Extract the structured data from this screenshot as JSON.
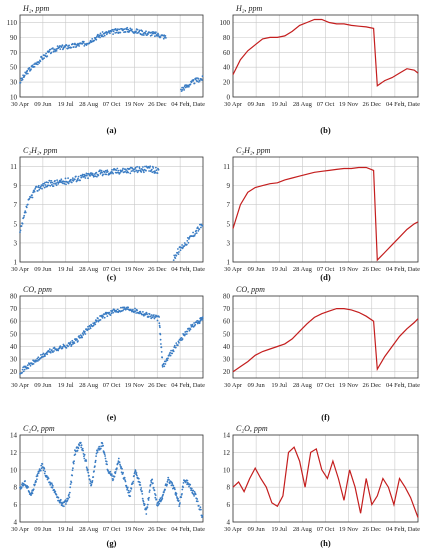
{
  "colors": {
    "scatter": "#3a7cc3",
    "line": "#c41e1e"
  },
  "x_axis": {
    "tick_labels": [
      "30 Apr",
      "09 Jun",
      "19 Jul",
      "28 Aug",
      "07 Oct",
      "19 Nov",
      "26 Dec",
      "04 Feb"
    ],
    "end_label": "t, Date"
  },
  "chart_data": [
    {
      "id": "a",
      "caption": "(a)",
      "type": "scatter",
      "ylabel": "H₂, ppm",
      "yticks": [
        10,
        30,
        50,
        70,
        90,
        110
      ],
      "ylim": [
        10,
        120
      ],
      "x": [
        0,
        4,
        8,
        12,
        16,
        20,
        24,
        28,
        32,
        36,
        40,
        44,
        48,
        52,
        56,
        60,
        64,
        68,
        72,
        76,
        80,
        84,
        88,
        92,
        96,
        100
      ],
      "y": [
        30,
        44,
        53,
        62,
        70,
        75,
        77,
        78,
        80,
        82,
        88,
        93,
        96,
        98,
        100,
        100,
        98,
        96,
        95,
        93,
        90,
        null,
        20,
        26,
        32,
        35
      ]
    },
    {
      "id": "b",
      "caption": "(b)",
      "type": "line",
      "ylabel": "H₂, ppm",
      "yticks": [
        0,
        20,
        40,
        60,
        80,
        100
      ],
      "ylim": [
        0,
        110
      ],
      "x": [
        0,
        4,
        8,
        12,
        16,
        20,
        24,
        28,
        32,
        36,
        40,
        44,
        48,
        52,
        56,
        60,
        64,
        68,
        72,
        76,
        78,
        82,
        86,
        90,
        94,
        98,
        100
      ],
      "y": [
        30,
        50,
        62,
        70,
        78,
        80,
        80,
        82,
        88,
        96,
        100,
        104,
        104,
        100,
        98,
        98,
        96,
        95,
        94,
        92,
        15,
        22,
        26,
        32,
        38,
        36,
        32
      ]
    },
    {
      "id": "c",
      "caption": "(c)",
      "type": "scatter",
      "ylabel": "C₂H₂, ppm",
      "yticks": [
        1,
        3,
        5,
        7,
        9,
        11
      ],
      "ylim": [
        1,
        12
      ],
      "x": [
        0,
        4,
        8,
        12,
        16,
        20,
        24,
        28,
        32,
        36,
        40,
        44,
        48,
        52,
        56,
        60,
        64,
        68,
        72,
        76,
        80,
        84,
        88,
        92,
        96,
        100
      ],
      "y": [
        4,
        7,
        8.5,
        9,
        9.2,
        9.3,
        9.4,
        9.6,
        9.8,
        10,
        10.2,
        10.3,
        10.4,
        10.5,
        10.6,
        10.6,
        10.7,
        10.7,
        10.7,
        10.5,
        null,
        1.5,
        2.5,
        3.3,
        4.2,
        5
      ]
    },
    {
      "id": "d",
      "caption": "(d)",
      "type": "line",
      "ylabel": "C₂H₂, ppm",
      "yticks": [
        1,
        3,
        5,
        7,
        9,
        11
      ],
      "ylim": [
        1,
        12
      ],
      "x": [
        0,
        4,
        8,
        12,
        16,
        20,
        24,
        28,
        32,
        36,
        40,
        44,
        48,
        52,
        56,
        60,
        64,
        68,
        72,
        76,
        78,
        82,
        86,
        90,
        94,
        98,
        100
      ],
      "y": [
        4.5,
        7,
        8.3,
        8.8,
        9,
        9.2,
        9.3,
        9.6,
        9.8,
        10,
        10.2,
        10.4,
        10.5,
        10.6,
        10.7,
        10.8,
        10.8,
        10.9,
        10.9,
        10.6,
        1.2,
        2,
        2.8,
        3.6,
        4.4,
        5,
        5.2
      ]
    },
    {
      "id": "e",
      "caption": "(e)",
      "type": "scatter",
      "ylabel": "CO, ppm",
      "yticks": [
        20,
        30,
        40,
        50,
        60,
        70,
        80
      ],
      "ylim": [
        15,
        80
      ],
      "x": [
        0,
        4,
        8,
        12,
        16,
        20,
        24,
        28,
        32,
        36,
        40,
        44,
        48,
        52,
        56,
        60,
        64,
        68,
        72,
        76,
        78,
        82,
        86,
        90,
        94,
        98,
        100
      ],
      "y": [
        20,
        24,
        28,
        32,
        36,
        38,
        40,
        42,
        46,
        52,
        58,
        63,
        66,
        68,
        70,
        70,
        68,
        66,
        64,
        62,
        24,
        34,
        42,
        50,
        56,
        60,
        62
      ]
    },
    {
      "id": "f",
      "caption": "(f)",
      "type": "line",
      "ylabel": "CO, ppm",
      "yticks": [
        20,
        30,
        40,
        50,
        60,
        70,
        80
      ],
      "ylim": [
        15,
        80
      ],
      "x": [
        0,
        4,
        8,
        12,
        16,
        20,
        24,
        28,
        32,
        36,
        40,
        44,
        48,
        52,
        56,
        60,
        64,
        68,
        72,
        76,
        78,
        82,
        86,
        90,
        94,
        98,
        100
      ],
      "y": [
        20,
        24,
        28,
        33,
        36,
        38,
        40,
        42,
        46,
        52,
        58,
        63,
        66,
        68,
        70,
        70,
        69,
        67,
        64,
        60,
        22,
        32,
        40,
        48,
        54,
        59,
        62
      ]
    },
    {
      "id": "g",
      "caption": "(g)",
      "type": "scatter",
      "ylabel": "C₂O, ppm",
      "yticks": [
        4,
        6,
        8,
        10,
        12,
        14
      ],
      "ylim": [
        4,
        14
      ],
      "x": [
        0,
        3,
        6,
        9,
        12,
        15,
        18,
        21,
        24,
        27,
        30,
        33,
        36,
        39,
        42,
        45,
        48,
        51,
        54,
        57,
        60,
        63,
        66,
        69,
        72,
        75,
        78,
        81,
        84,
        87,
        90,
        93,
        96,
        100
      ],
      "y": [
        8,
        8.5,
        7,
        9,
        10.5,
        9,
        8,
        6.5,
        6,
        7,
        12,
        13,
        11,
        8,
        12,
        13,
        10,
        9,
        11,
        9,
        7,
        10,
        8,
        5,
        9,
        6,
        7,
        9,
        8,
        6,
        9,
        8,
        7,
        4.5
      ]
    },
    {
      "id": "h",
      "caption": "(h)",
      "type": "line",
      "ylabel": "C₂O, ppm",
      "yticks": [
        4,
        6,
        8,
        10,
        12,
        14
      ],
      "ylim": [
        4,
        14
      ],
      "x": [
        0,
        3,
        6,
        9,
        12,
        15,
        18,
        21,
        24,
        27,
        30,
        33,
        36,
        39,
        42,
        45,
        48,
        51,
        54,
        57,
        60,
        63,
        66,
        69,
        72,
        75,
        78,
        81,
        84,
        87,
        90,
        93,
        96,
        100
      ],
      "y": [
        8,
        8.6,
        7.5,
        9,
        10.2,
        9,
        8,
        6.2,
        5.8,
        7,
        12,
        12.6,
        11,
        8,
        12,
        12.4,
        10,
        9,
        11,
        9,
        6.5,
        10,
        8,
        5,
        9,
        6,
        7,
        9,
        8,
        6,
        9,
        8,
        6.8,
        4.5
      ]
    }
  ]
}
